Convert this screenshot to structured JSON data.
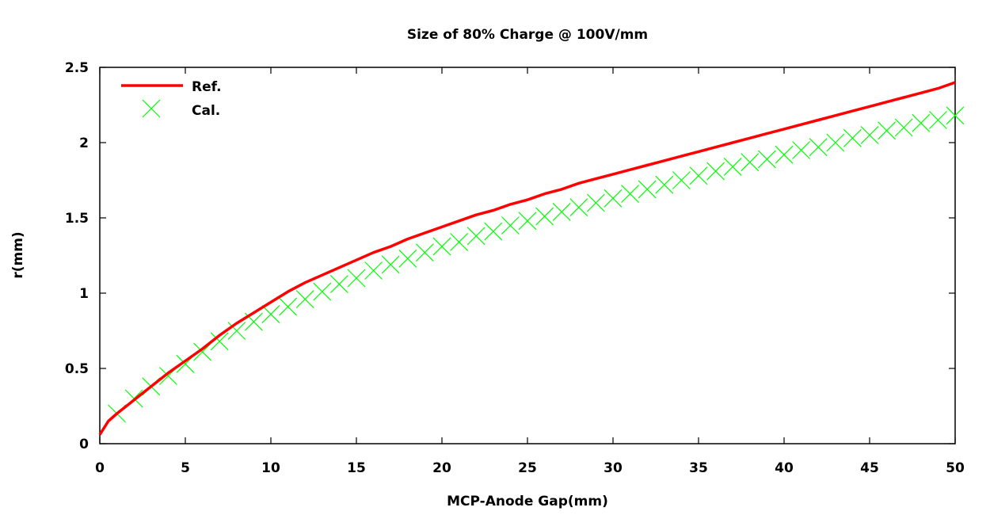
{
  "chart_data": {
    "type": "line",
    "title": "Size of 80% Charge @ 100V/mm",
    "xlabel": "MCP-Anode Gap(mm)",
    "ylabel": "r(mm)",
    "xlim": [
      0,
      50
    ],
    "ylim": [
      0,
      2.5
    ],
    "x_ticks": [
      "0",
      "5",
      "10",
      "15",
      "20",
      "25",
      "30",
      "35",
      "40",
      "45",
      "50"
    ],
    "y_ticks": [
      "0",
      "0.5",
      "1",
      "1.5",
      "2",
      "2.5"
    ],
    "grid": false,
    "legend_position": "top-left",
    "series": [
      {
        "name": "Ref.",
        "style": "line",
        "color": "#ff0000",
        "x": [
          0,
          0.5,
          1,
          2,
          3,
          4,
          5,
          6,
          7,
          8,
          9,
          10,
          11,
          12,
          13,
          14,
          15,
          16,
          17,
          18,
          19,
          20,
          21,
          22,
          23,
          24,
          25,
          26,
          27,
          28,
          29,
          30,
          31,
          32,
          33,
          34,
          35,
          36,
          37,
          38,
          39,
          40,
          41,
          42,
          43,
          44,
          45,
          46,
          47,
          48,
          49,
          50
        ],
        "y": [
          0.06,
          0.15,
          0.2,
          0.29,
          0.38,
          0.47,
          0.55,
          0.63,
          0.72,
          0.8,
          0.87,
          0.94,
          1.01,
          1.07,
          1.12,
          1.17,
          1.22,
          1.27,
          1.31,
          1.36,
          1.4,
          1.44,
          1.48,
          1.52,
          1.55,
          1.59,
          1.62,
          1.66,
          1.69,
          1.73,
          1.76,
          1.79,
          1.82,
          1.85,
          1.88,
          1.91,
          1.94,
          1.97,
          2.0,
          2.03,
          2.06,
          2.09,
          2.12,
          2.15,
          2.18,
          2.21,
          2.24,
          2.27,
          2.3,
          2.33,
          2.36,
          2.4
        ]
      },
      {
        "name": "Cal.",
        "style": "marker-x",
        "color": "#00ff00",
        "x": [
          1,
          2,
          3,
          4,
          5,
          6,
          7,
          8,
          9,
          10,
          11,
          12,
          13,
          14,
          15,
          16,
          17,
          18,
          19,
          20,
          21,
          22,
          23,
          24,
          25,
          26,
          27,
          28,
          29,
          30,
          31,
          32,
          33,
          34,
          35,
          36,
          37,
          38,
          39,
          40,
          41,
          42,
          43,
          44,
          45,
          46,
          47,
          48,
          49,
          50
        ],
        "y": [
          0.2,
          0.3,
          0.38,
          0.45,
          0.53,
          0.61,
          0.68,
          0.75,
          0.81,
          0.86,
          0.91,
          0.96,
          1.01,
          1.06,
          1.1,
          1.15,
          1.19,
          1.23,
          1.27,
          1.31,
          1.34,
          1.38,
          1.41,
          1.45,
          1.48,
          1.51,
          1.54,
          1.57,
          1.6,
          1.63,
          1.66,
          1.69,
          1.72,
          1.75,
          1.78,
          1.81,
          1.84,
          1.87,
          1.89,
          1.92,
          1.95,
          1.97,
          2.0,
          2.03,
          2.05,
          2.08,
          2.1,
          2.13,
          2.15,
          2.18
        ]
      }
    ]
  }
}
